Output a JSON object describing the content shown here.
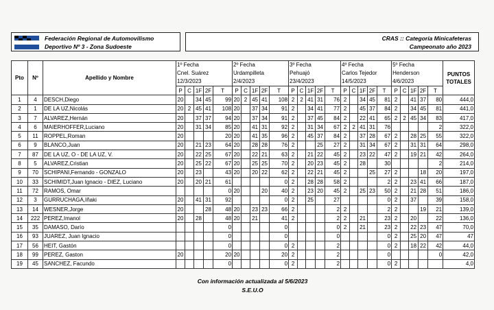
{
  "header": {
    "left": [
      "Federación Regional de Automovilismo",
      "Deportivo Nº 3 - Zona Sudoeste"
    ],
    "right": [
      "CRAS :: Categoría Minicafeteras",
      "Campeonato año 2023"
    ]
  },
  "table": {
    "columns": {
      "pto": "Pto",
      "num": "Nº",
      "name": "Apellido y Nombre",
      "total": "PUNTOS TOTALES"
    },
    "fechas": [
      [
        "1º Fecha",
        "Cnel. Suárez",
        "12/3/2023"
      ],
      [
        "2º Fecha",
        "Urdampilleta",
        "2/4/2023"
      ],
      [
        "3º Fecha",
        "Pehuajó",
        "23/4/2023"
      ],
      [
        "4º Fecha",
        "Carlos Tejedor",
        "14/5/2023"
      ],
      [
        "5º Fecha",
        "Henderson",
        "4/6/2023"
      ]
    ],
    "sub": [
      "P",
      "C",
      "1F",
      "2F",
      "T"
    ],
    "rows": [
      {
        "pto": "1",
        "num": "4",
        "name": "DESCH,Diego",
        "fechas": [
          [
            "20",
            null,
            "34",
            "45",
            "99"
          ],
          [
            "20",
            "2",
            "45",
            "41",
            "108"
          ],
          [
            "2",
            "2",
            "41",
            "31",
            "76"
          ],
          [
            "2",
            null,
            "34",
            "45",
            "81"
          ],
          [
            "2",
            null,
            "41",
            "37",
            "80"
          ]
        ],
        "total": "444,0"
      },
      {
        "pto": "2",
        "num": "1",
        "name": "DE LA UZ,Nicolás",
        "fechas": [
          [
            "20",
            "2",
            "45",
            "41",
            "108"
          ],
          [
            "20",
            null,
            "37",
            "34",
            "91"
          ],
          [
            "2",
            null,
            "34",
            "41",
            "77"
          ],
          [
            "2",
            null,
            "45",
            "37",
            "84"
          ],
          [
            "2",
            null,
            "34",
            "45",
            "81"
          ]
        ],
        "total": "441,0"
      },
      {
        "pto": "3",
        "num": "7",
        "name": "ALVAREZ,Hernán",
        "fechas": [
          [
            "20",
            null,
            "37",
            "37",
            "94"
          ],
          [
            "20",
            null,
            "37",
            "34",
            "91"
          ],
          [
            "2",
            null,
            "37",
            "45",
            "84"
          ],
          [
            "2",
            null,
            "22",
            "41",
            "65"
          ],
          [
            "2",
            "2",
            "45",
            "34",
            "83"
          ]
        ],
        "total": "417,0"
      },
      {
        "pto": "4",
        "num": "6",
        "name": "MAIERHOFFER,Luciano",
        "fechas": [
          [
            "20",
            null,
            "31",
            "34",
            "85"
          ],
          [
            "20",
            null,
            "41",
            "31",
            "92"
          ],
          [
            "2",
            null,
            "31",
            "34",
            "67"
          ],
          [
            "2",
            "2",
            "41",
            "31",
            "76"
          ],
          [
            null,
            null,
            null,
            null,
            "2"
          ]
        ],
        "total": "322,0"
      },
      {
        "pto": "5",
        "num": "11",
        "name": "ROPPEL,Roman",
        "fechas": [
          [
            "20",
            null,
            null,
            null,
            "20"
          ],
          [
            "20",
            null,
            "41",
            "35",
            "96"
          ],
          [
            "2",
            null,
            "45",
            "37",
            "84"
          ],
          [
            "2",
            null,
            "37",
            "28",
            "67"
          ],
          [
            "2",
            null,
            "28",
            "25",
            "55"
          ]
        ],
        "total": "322,0"
      },
      {
        "pto": "6",
        "num": "9",
        "name": "BLANCO,Juan",
        "fechas": [
          [
            "20",
            null,
            "21",
            "23",
            "64"
          ],
          [
            "20",
            null,
            "28",
            "28",
            "76"
          ],
          [
            "2",
            null,
            null,
            "25",
            "27"
          ],
          [
            "2",
            null,
            "31",
            "34",
            "67"
          ],
          [
            "2",
            null,
            "31",
            "31",
            "64"
          ]
        ],
        "total": "298,0"
      },
      {
        "pto": "7",
        "num": "87",
        "name": "DE LA UZ, O - DE LA UZ, V.",
        "fechas": [
          [
            "20",
            null,
            "22",
            "25",
            "67"
          ],
          [
            "20",
            null,
            "22",
            "21",
            "63"
          ],
          [
            "2",
            null,
            "21",
            "22",
            "45"
          ],
          [
            "2",
            null,
            "23",
            "22",
            "47"
          ],
          [
            "2",
            null,
            "19",
            "21",
            "42"
          ]
        ],
        "total": "264,0"
      },
      {
        "pto": "8",
        "num": "5",
        "name": "ALVAREZ,Cristian",
        "fechas": [
          [
            "20",
            null,
            "25",
            "22",
            "67"
          ],
          [
            "20",
            null,
            "25",
            "25",
            "70"
          ],
          [
            "2",
            null,
            "20",
            "23",
            "45"
          ],
          [
            "2",
            null,
            "28",
            null,
            "30"
          ],
          [
            null,
            null,
            null,
            null,
            "2"
          ]
        ],
        "total": "214,0"
      },
      {
        "pto": "9",
        "num": "70",
        "name": "SCHIPANI,Fernando - GONZALO",
        "fechas": [
          [
            "20",
            null,
            "23",
            null,
            "43"
          ],
          [
            "20",
            null,
            "20",
            "22",
            "62"
          ],
          [
            "2",
            null,
            "22",
            "21",
            "45"
          ],
          [
            "2",
            null,
            null,
            "25",
            "27"
          ],
          [
            "2",
            null,
            null,
            "18",
            "20"
          ]
        ],
        "total": "197,0"
      },
      {
        "pto": "10",
        "num": "33",
        "name": "SCHIMIDT,Juan Ignacio - DIEZ, Luciano",
        "fechas": [
          [
            "20",
            null,
            "20",
            "21",
            "61"
          ],
          [
            null,
            null,
            null,
            null,
            "0"
          ],
          [
            "2",
            null,
            "28",
            "28",
            "58"
          ],
          [
            "2",
            null,
            null,
            null,
            "2"
          ],
          [
            "2",
            null,
            "23",
            "41",
            "66"
          ]
        ],
        "total": "187,0"
      },
      {
        "pto": "11",
        "num": "72",
        "name": "RAMOS, Omar",
        "fechas": [
          [
            null,
            null,
            null,
            null,
            "0"
          ],
          [
            "20",
            null,
            null,
            "20",
            "40"
          ],
          [
            "2",
            null,
            "23",
            "20",
            "45"
          ],
          [
            "2",
            null,
            "25",
            "23",
            "50"
          ],
          [
            "2",
            null,
            "21",
            "28",
            "51"
          ]
        ],
        "total": "186,0"
      },
      {
        "pto": "12",
        "num": "3",
        "name": "GURRUCHAGA,Iñaki",
        "fechas": [
          [
            "20",
            null,
            "41",
            "31",
            "92"
          ],
          [
            null,
            null,
            null,
            null,
            "0"
          ],
          [
            "2",
            null,
            "25",
            null,
            "27"
          ],
          [
            null,
            null,
            null,
            null,
            "0"
          ],
          [
            "2",
            null,
            "37",
            null,
            "39"
          ]
        ],
        "total": "158,0"
      },
      {
        "pto": "13",
        "num": "14",
        "name": "WESNER,Jorge",
        "fechas": [
          [
            "20",
            null,
            null,
            "28",
            "48"
          ],
          [
            "20",
            null,
            "23",
            "23",
            "66"
          ],
          [
            "2",
            null,
            null,
            null,
            "2"
          ],
          [
            "2",
            null,
            null,
            null,
            "2"
          ],
          [
            "2",
            null,
            null,
            "19",
            "21"
          ]
        ],
        "total": "139,0"
      },
      {
        "pto": "14",
        "num": "222",
        "name": "PEREZ,Imanol",
        "fechas": [
          [
            "20",
            null,
            "28",
            null,
            "48"
          ],
          [
            "20",
            null,
            "21",
            null,
            "41"
          ],
          [
            "2",
            null,
            null,
            null,
            "2"
          ],
          [
            "2",
            null,
            "21",
            null,
            "23"
          ],
          [
            "2",
            null,
            "20",
            null,
            "22"
          ]
        ],
        "total": "136,0"
      },
      {
        "pto": "15",
        "num": "35",
        "name": "DAMASO, Darío",
        "fechas": [
          [
            null,
            null,
            null,
            null,
            "0"
          ],
          [
            null,
            null,
            null,
            null,
            "0"
          ],
          [
            null,
            null,
            null,
            null,
            "0"
          ],
          [
            "2",
            null,
            "21",
            null,
            "23"
          ],
          [
            "2",
            null,
            "22",
            "23",
            "47"
          ]
        ],
        "total": "70,0"
      },
      {
        "pto": "16",
        "num": "93",
        "name": "JUAREZ, Juan Ignacio",
        "fechas": [
          [
            null,
            null,
            null,
            null,
            "0"
          ],
          [
            null,
            null,
            null,
            null,
            "0"
          ],
          [
            null,
            null,
            null,
            null,
            "0"
          ],
          [
            null,
            null,
            null,
            null,
            "0"
          ],
          [
            "2",
            null,
            "25",
            "20",
            "47"
          ]
        ],
        "total": "47"
      },
      {
        "pto": "17",
        "num": "56",
        "name": "HEIT, Gastón",
        "fechas": [
          [
            null,
            null,
            null,
            null,
            "0"
          ],
          [
            null,
            null,
            null,
            null,
            "0"
          ],
          [
            "2",
            null,
            null,
            null,
            "2"
          ],
          [
            null,
            null,
            null,
            null,
            "0"
          ],
          [
            "2",
            null,
            "18",
            "22",
            "42"
          ]
        ],
        "total": "44,0"
      },
      {
        "pto": "18",
        "num": "99",
        "name": "PEREZ, Gaston",
        "fechas": [
          [
            "20",
            null,
            null,
            null,
            "20"
          ],
          [
            "20",
            null,
            null,
            null,
            "20"
          ],
          [
            "2",
            null,
            null,
            null,
            "2"
          ],
          [
            null,
            null,
            null,
            null,
            "0"
          ],
          [
            null,
            null,
            null,
            null,
            "0"
          ]
        ],
        "total": "42,0"
      },
      {
        "pto": "19",
        "num": "45",
        "name": "SANCHEZ, Facundo",
        "fechas": [
          [
            null,
            null,
            null,
            null,
            "0"
          ],
          [
            null,
            null,
            null,
            null,
            "0"
          ],
          [
            "2",
            null,
            null,
            null,
            "2"
          ],
          [
            null,
            null,
            null,
            null,
            "0"
          ],
          [
            "2",
            null,
            null,
            null,
            null
          ]
        ],
        "total": "4,0"
      }
    ]
  },
  "footer": [
    "Con información actualizada al 5/6/2023",
    "S.E.U.O"
  ]
}
